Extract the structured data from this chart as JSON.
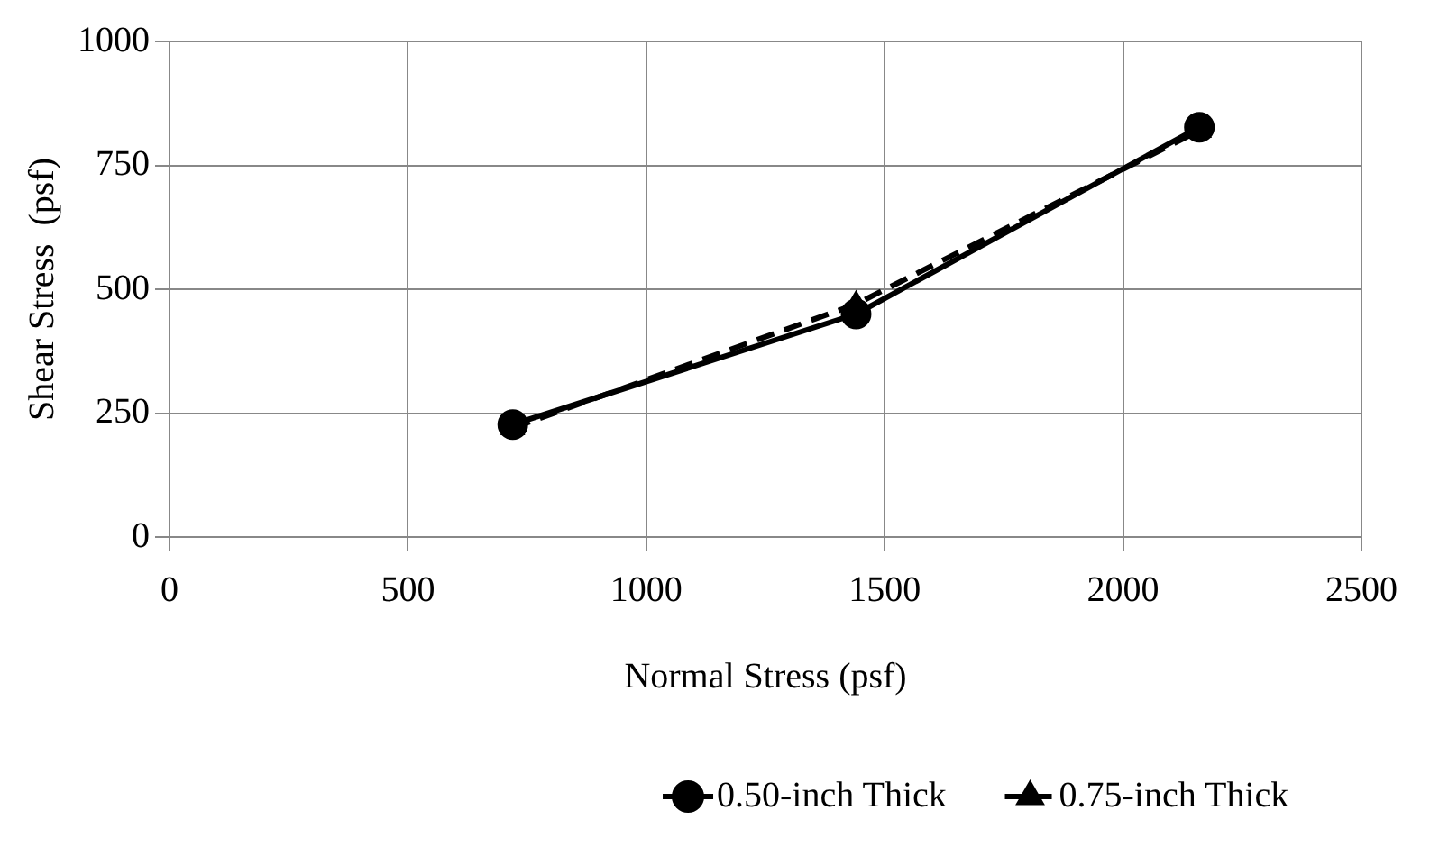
{
  "chart_data": {
    "type": "line",
    "xlabel": "Normal Stress (psf)",
    "ylabel": "Shear Stress  (psf)",
    "xlim": [
      0,
      2500
    ],
    "xticks": [
      0,
      500,
      1000,
      1500,
      2000,
      2500
    ],
    "ylim": [
      0,
      1000
    ],
    "yticks": [
      0,
      250,
      500,
      750,
      1000
    ],
    "grid": true,
    "legend": "bottom",
    "series": [
      {
        "name": "0.50-inch Thick",
        "color": "#000000",
        "x": [
          720,
          1440,
          2160
        ],
        "values": [
          227,
          450,
          827
        ],
        "marker": "circle",
        "line_style": "solid"
      },
      {
        "name": "0.75-inch Thick",
        "color": "#000000",
        "x": [
          720,
          1440,
          2160
        ],
        "values": [
          220,
          470,
          820
        ],
        "marker": "triangle",
        "line_style": "dashed"
      }
    ]
  }
}
